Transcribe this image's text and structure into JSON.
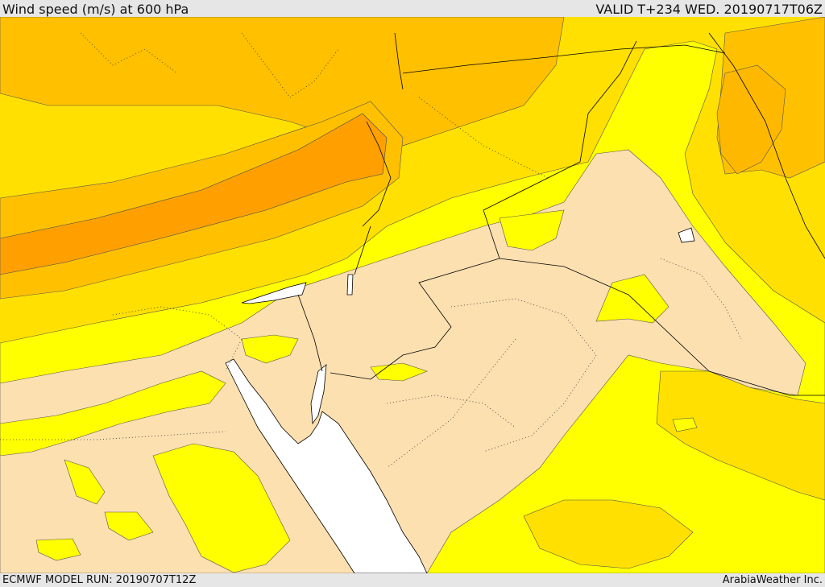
{
  "header": {
    "title": "Wind speed (m/s) at 600 hPa",
    "valid_time": "VALID T+234 WED. 20190717T06Z"
  },
  "footer": {
    "model_run": "ECMWF MODEL RUN: 20190707T12Z",
    "credit": "ArabiaWeather Inc."
  },
  "map": {
    "palette": {
      "sea": "#ffffff",
      "band_lt5": "#fde0b0",
      "band_5_10": "#ffff00",
      "band_10_15": "#ffe000",
      "band_15_20": "#ffc000",
      "band_20_25": "#ffa000",
      "coast_border": "#000000"
    }
  }
}
